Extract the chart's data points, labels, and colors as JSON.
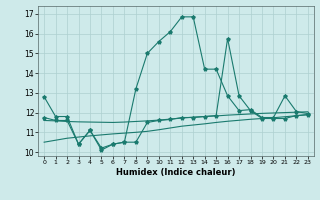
{
  "xlabel": "Humidex (Indice chaleur)",
  "xlim": [
    -0.5,
    23.5
  ],
  "ylim": [
    9.8,
    17.4
  ],
  "yticks": [
    10,
    11,
    12,
    13,
    14,
    15,
    16,
    17
  ],
  "xticks": [
    0,
    1,
    2,
    3,
    4,
    5,
    6,
    7,
    8,
    9,
    10,
    11,
    12,
    13,
    14,
    15,
    16,
    17,
    18,
    19,
    20,
    21,
    22,
    23
  ],
  "background_color": "#ceeaea",
  "grid_color": "#aed0d0",
  "line_color": "#1a7a6e",
  "series": [
    {
      "y": [
        12.8,
        11.8,
        11.8,
        10.4,
        11.1,
        10.2,
        10.4,
        10.5,
        13.2,
        15.0,
        15.6,
        16.1,
        16.85,
        16.85,
        14.2,
        14.2,
        12.85,
        12.1,
        12.15,
        11.75,
        11.75,
        12.85,
        12.05,
        11.95
      ],
      "marker": true
    },
    {
      "y": [
        11.75,
        11.6,
        11.6,
        10.4,
        11.1,
        10.1,
        10.4,
        10.5,
        10.5,
        11.5,
        11.6,
        11.65,
        11.75,
        11.75,
        11.8,
        11.85,
        15.75,
        12.85,
        12.1,
        11.7,
        11.7,
        11.7,
        11.85,
        11.9
      ],
      "marker": true
    },
    {
      "y": [
        11.6,
        11.58,
        11.55,
        11.53,
        11.52,
        11.51,
        11.5,
        11.52,
        11.55,
        11.58,
        11.62,
        11.67,
        11.72,
        11.77,
        11.8,
        11.83,
        11.87,
        11.9,
        11.93,
        11.96,
        11.98,
        12.0,
        12.02,
        12.04
      ],
      "marker": false
    },
    {
      "y": [
        10.5,
        10.6,
        10.7,
        10.76,
        10.82,
        10.87,
        10.92,
        10.96,
        11.0,
        11.05,
        11.13,
        11.22,
        11.31,
        11.37,
        11.43,
        11.5,
        11.56,
        11.61,
        11.66,
        11.7,
        11.74,
        11.79,
        11.84,
        11.89
      ],
      "marker": false
    }
  ]
}
